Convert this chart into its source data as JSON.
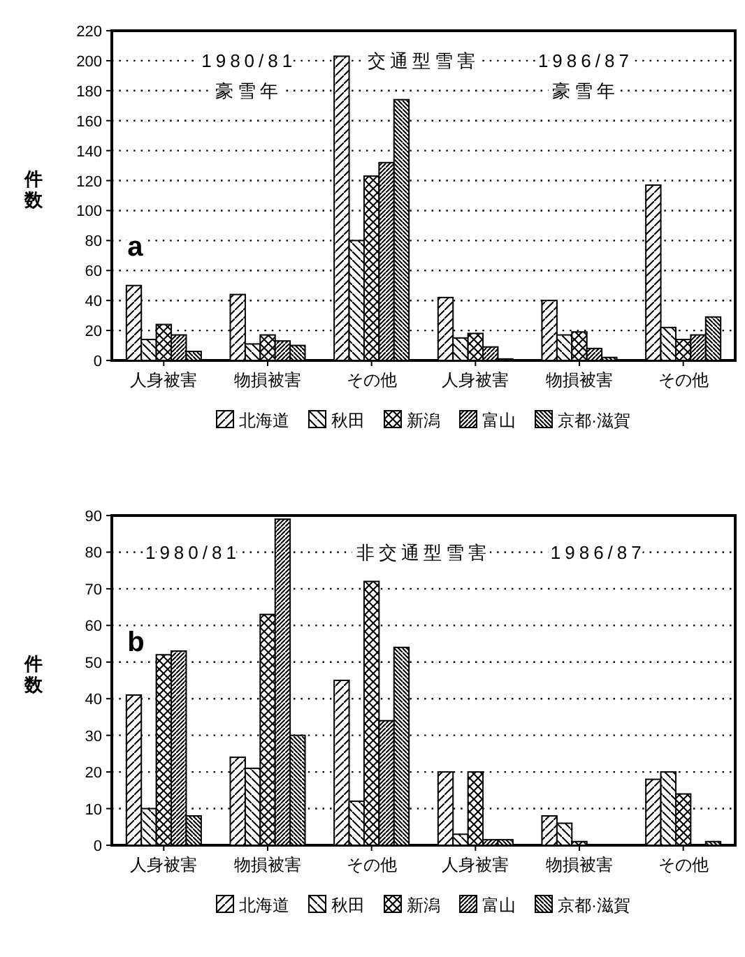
{
  "chart_data": [
    {
      "type": "bar",
      "ylabel": "件数",
      "categories": [
        "人身被害",
        "物損被害",
        "その他",
        "人身被害",
        "物損被害",
        "その他"
      ],
      "series": [
        {
          "name": "北海道",
          "color": "#000000",
          "values": [
            50,
            44,
            203,
            42,
            40,
            117
          ]
        },
        {
          "name": "秋田",
          "color": "#000000",
          "values": [
            14,
            11,
            80,
            15,
            17,
            22
          ]
        },
        {
          "name": "新潟",
          "color": "#000000",
          "values": [
            24,
            17,
            123,
            18,
            19,
            14
          ]
        },
        {
          "name": "富山",
          "color": "#000000",
          "values": [
            17,
            13,
            132,
            9,
            8,
            17
          ]
        },
        {
          "name": "京都·滋賀",
          "color": "#000000",
          "values": [
            6,
            10,
            174,
            1,
            2,
            29
          ]
        }
      ],
      "ylim": [
        0,
        220
      ],
      "yticks": [
        0,
        20,
        40,
        60,
        80,
        100,
        120,
        140,
        160,
        180,
        200,
        220
      ],
      "grid": "y",
      "legend": "bottom",
      "annotations": [
        "1980/81",
        "交通型雪害",
        "1986/87",
        "豪雪年",
        "豪雪年",
        "a"
      ]
    },
    {
      "type": "bar",
      "ylabel": "件数",
      "categories": [
        "人身被害",
        "物損被害",
        "その他",
        "人身被害",
        "物損被害",
        "その他"
      ],
      "series": [
        {
          "name": "北海道",
          "color": "#000000",
          "values": [
            41,
            24,
            45,
            20,
            8,
            18
          ]
        },
        {
          "name": "秋田",
          "color": "#000000",
          "values": [
            10,
            21,
            12,
            3,
            6,
            20
          ]
        },
        {
          "name": "新潟",
          "color": "#000000",
          "values": [
            52,
            63,
            72,
            20,
            1,
            14
          ]
        },
        {
          "name": "富山",
          "color": "#000000",
          "values": [
            53,
            89,
            34,
            1.5,
            null,
            null
          ]
        },
        {
          "name": "京都·滋賀",
          "color": "#000000",
          "values": [
            8,
            30,
            54,
            1.5,
            null,
            1
          ]
        }
      ],
      "ylim": [
        0,
        90
      ],
      "yticks": [
        0,
        10,
        20,
        30,
        40,
        50,
        60,
        70,
        80,
        90
      ],
      "grid": "y",
      "legend": "bottom",
      "annotations": [
        "1980/81",
        "非交通型雪害",
        "1986/87",
        "b"
      ]
    }
  ]
}
